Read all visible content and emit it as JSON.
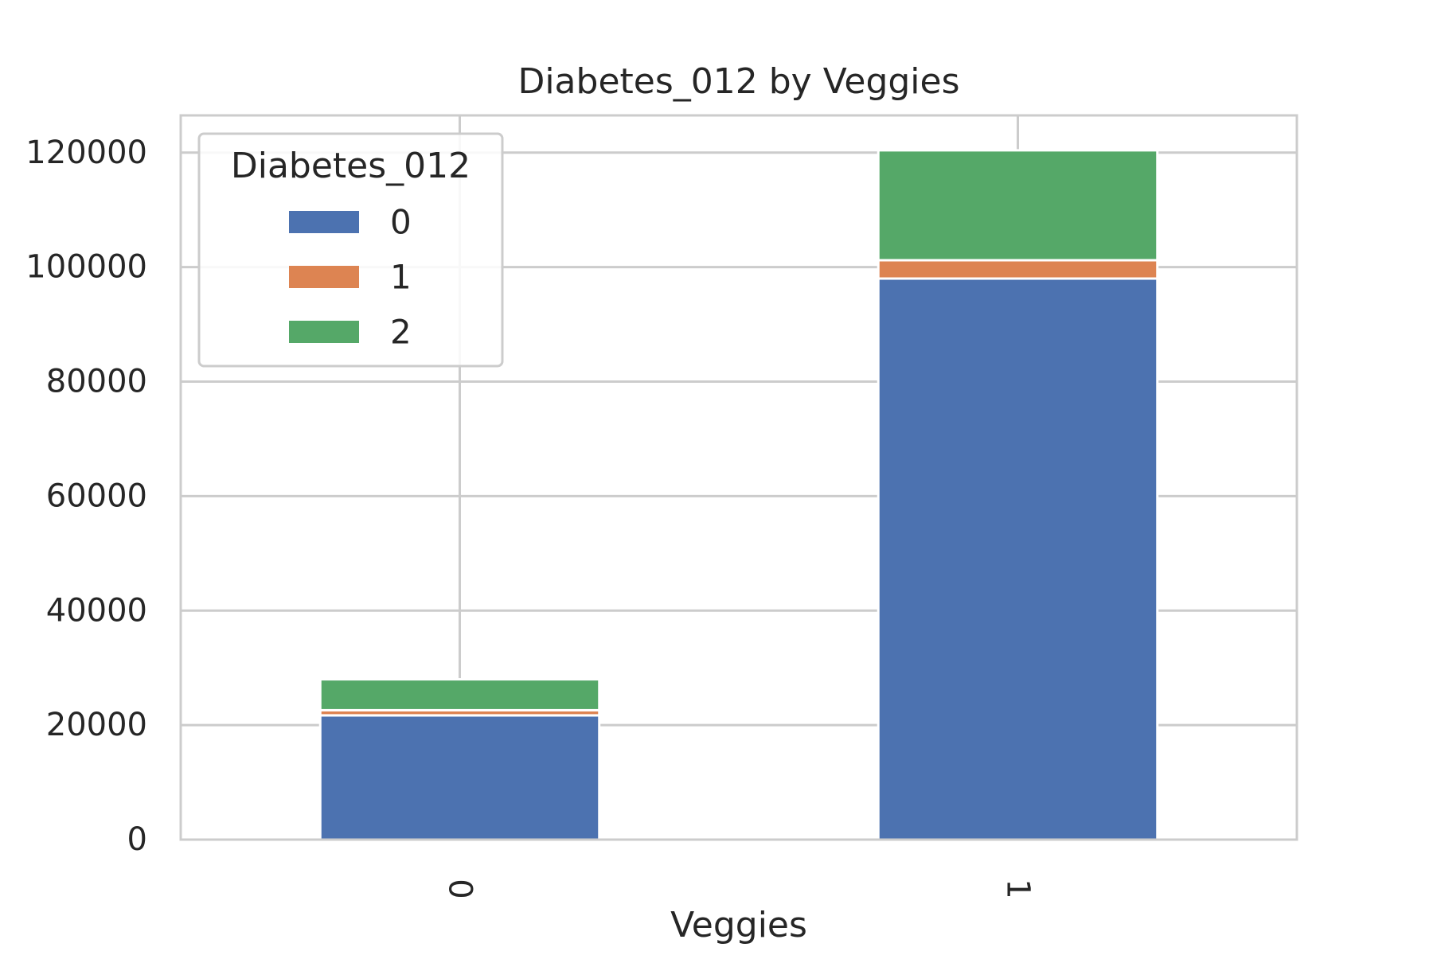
{
  "chart_data": {
    "type": "bar",
    "stacked": true,
    "title": "Diabetes_012 by Veggies",
    "xlabel": "Veggies",
    "ylabel": "",
    "categories": [
      "0",
      "1"
    ],
    "series": [
      {
        "name": "0",
        "values": [
          21700,
          98000
        ],
        "color": "#4c72b0"
      },
      {
        "name": "1",
        "values": [
          900,
          3200
        ],
        "color": "#dd8452"
      },
      {
        "name": "2",
        "values": [
          5400,
          19200
        ],
        "color": "#55a868"
      }
    ],
    "ylim": [
      0,
      126500
    ],
    "yticks": [
      0,
      20000,
      40000,
      60000,
      80000,
      100000,
      120000
    ],
    "grid": true,
    "legend": {
      "title": "Diabetes_012",
      "placement": "top-left"
    }
  }
}
